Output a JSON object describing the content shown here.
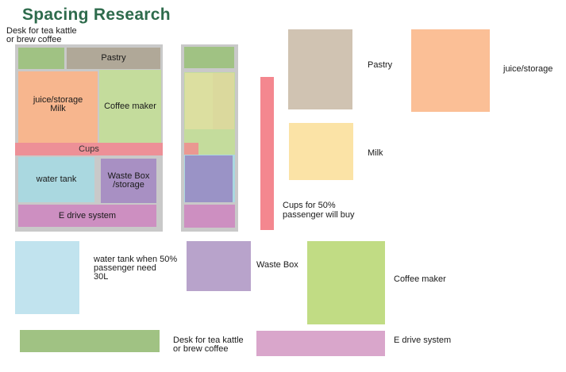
{
  "title": "Spacing Research",
  "desk_caption": "Desk for tea kattle or brew coffee",
  "left_plan": {
    "pastry": "Pastry",
    "juice_storage_milk": "juice/storage\nMilk",
    "coffee_maker": "Coffee maker",
    "cups": "Cups",
    "water_tank": "water tank",
    "waste_box": "Waste Box\n/storage",
    "e_drive": "E drive system"
  },
  "legend": {
    "pastry": "Pastry",
    "juice_storage": "juice/storage",
    "milk": "Milk",
    "cups": "Cups for 50%\npassenger will buy",
    "water_tank": "water tank when 50%\npassenger need\n30L",
    "waste_box": "Waste Box",
    "coffee_maker": "Coffee maker",
    "desk": "Desk for tea kattle\nor brew coffee",
    "e_drive": "E drive system"
  },
  "colors": {
    "desk": "#a0c283",
    "pastry": "#b0a898",
    "pastry_legend": "#d0c3b2",
    "juice": "#f7b68e",
    "juice_legend": "#fbbf96",
    "milk": "#fbe3a6",
    "coffee": "#c4dc9c",
    "coffee_legend": "#c1dc84",
    "cups": "#f4878f",
    "water": "#aad8e0",
    "water_legend": "#c1e3ee",
    "waste": "#a890c3",
    "waste_legend": "#b8a3cb",
    "edrive": "#cd8fc1",
    "edrive_legend": "#d9a6cb",
    "frame": "#c9c9c9"
  }
}
